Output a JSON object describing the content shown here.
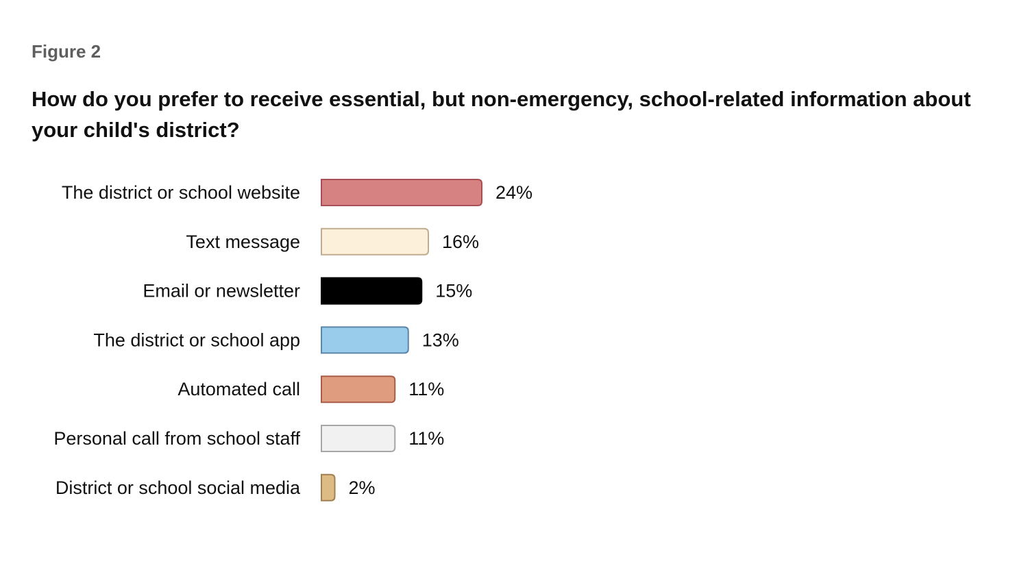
{
  "figure_label": "Figure 2",
  "chart_data": {
    "type": "bar",
    "orientation": "horizontal",
    "title": "How do you prefer to receive essential, but non-emergency, school-related information about your child's district?",
    "categories": [
      "The district or school website",
      "Text message",
      "Email or newsletter",
      "The district or school app",
      "Automated call",
      "Personal call from school staff",
      "District or school social media"
    ],
    "values": [
      24,
      16,
      15,
      13,
      11,
      11,
      2
    ],
    "value_labels": [
      "24%",
      "16%",
      "15%",
      "13%",
      "11%",
      "11%",
      "2%"
    ],
    "unit": "%",
    "colors": [
      "#d78282",
      "#fdf0da",
      "#000000",
      "#99cbea",
      "#e09c7f",
      "#f1f1f1",
      "#dcbb84"
    ],
    "border_colors": [
      "#a84f55",
      "#c0ac90",
      "#000000",
      "#5c86a8",
      "#a85d47",
      "#a6a6a6",
      "#a08050"
    ],
    "grid": false,
    "legend": "none"
  }
}
